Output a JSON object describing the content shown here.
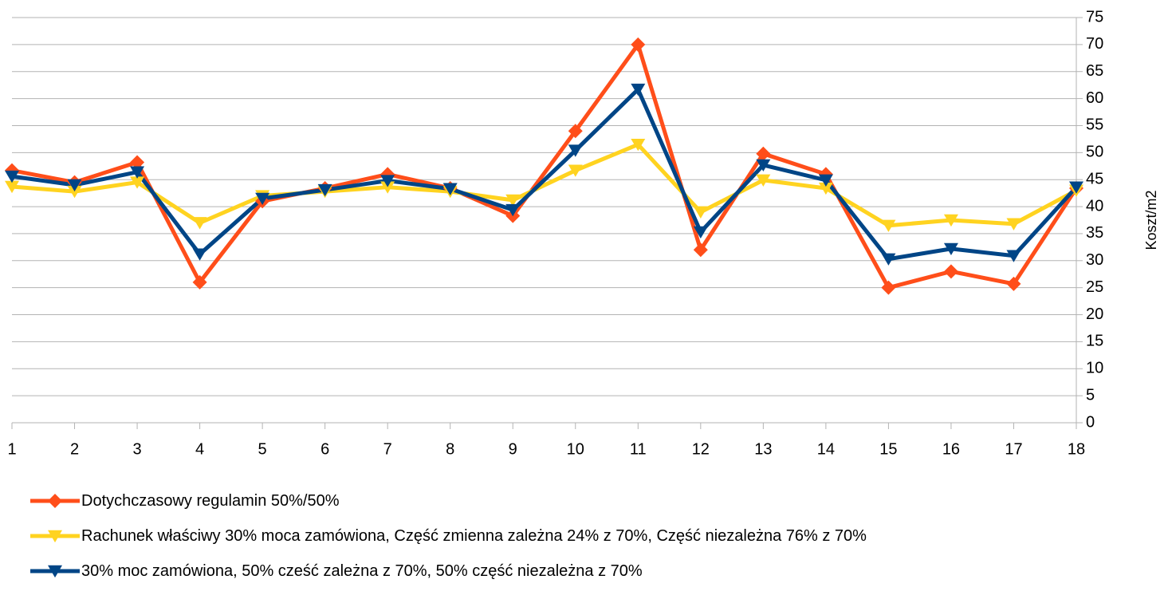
{
  "chart_data": {
    "type": "line",
    "y_axis_title": "Koszt/m2",
    "y_axis_side": "right",
    "grid": true,
    "x": [
      1,
      2,
      3,
      4,
      5,
      6,
      7,
      8,
      9,
      10,
      11,
      12,
      13,
      14,
      15,
      16,
      17,
      18
    ],
    "xlim": [
      1,
      18
    ],
    "xticks": [
      1,
      2,
      3,
      4,
      5,
      6,
      7,
      8,
      9,
      10,
      11,
      12,
      13,
      14,
      15,
      16,
      17,
      18
    ],
    "ylim": [
      0,
      75
    ],
    "yticks": [
      0,
      5,
      10,
      15,
      20,
      25,
      30,
      35,
      40,
      45,
      50,
      55,
      60,
      65,
      70,
      75
    ],
    "legend": "bottom",
    "series": [
      {
        "name": "Dotychczasowy regulamin 50%/50%",
        "color": "#ff4e1a",
        "marker": "diamond",
        "values": [
          46.7,
          44.5,
          48.2,
          26,
          41,
          43.4,
          46,
          43.4,
          38.3,
          54,
          70,
          32,
          49.8,
          46,
          25,
          28,
          25.7,
          43.4
        ]
      },
      {
        "name": "Rachunek właściwy 30% moca zamówiona, Część zmienna zależna 24% z 70%, Część niezależna 76% z 70%",
        "color": "#ffd320",
        "marker": "triangle-down",
        "values": [
          43.7,
          42.8,
          44.5,
          37,
          42,
          42.8,
          43.6,
          42.8,
          41.2,
          46.7,
          51.5,
          39,
          44.9,
          43.4,
          36.5,
          37.5,
          36.8,
          43
        ]
      },
      {
        "name": "30% moc zamówiona, 50% cześć zależna z 70%, 50% część niezależna z 70%",
        "color": "#004586",
        "marker": "triangle-down",
        "values": [
          45.6,
          44,
          46.4,
          31.2,
          41.5,
          43.1,
          44.8,
          43.3,
          39.4,
          50.4,
          61.7,
          35.3,
          47.7,
          44.9,
          30.3,
          32.2,
          30.9,
          43.6
        ]
      }
    ]
  }
}
